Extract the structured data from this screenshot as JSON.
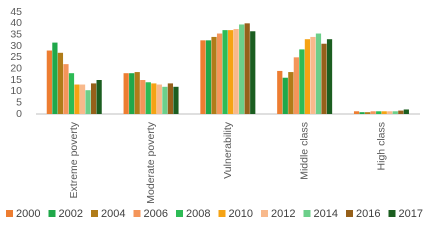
{
  "chart_data": {
    "type": "bar",
    "categories": [
      "Extreme poverty",
      "Moderate poverty",
      "Vulnerability",
      "Middle class",
      "High class"
    ],
    "series": [
      {
        "name": "2000",
        "color": "#ed7d31",
        "values": [
          28,
          18,
          32.5,
          19,
          1.2
        ]
      },
      {
        "name": "2002",
        "color": "#1fa84a",
        "values": [
          31.5,
          18,
          32.5,
          16,
          0.8
        ]
      },
      {
        "name": "2004",
        "color": "#b07c19",
        "values": [
          27,
          18.5,
          34,
          18.5,
          0.8
        ]
      },
      {
        "name": "2006",
        "color": "#f4955a",
        "values": [
          22,
          15,
          35.5,
          25,
          1.2
        ]
      },
      {
        "name": "2008",
        "color": "#2dbb55",
        "values": [
          18,
          14,
          37,
          28.5,
          1.2
        ]
      },
      {
        "name": "2010",
        "color": "#f5a314",
        "values": [
          13,
          13.5,
          37,
          33,
          1.2
        ]
      },
      {
        "name": "2012",
        "color": "#f8b98c",
        "values": [
          13,
          13,
          37.5,
          34,
          1.2
        ]
      },
      {
        "name": "2014",
        "color": "#6ccf8a",
        "values": [
          10.5,
          12,
          39.5,
          35.5,
          1.2
        ]
      },
      {
        "name": "2016",
        "color": "#96601a",
        "values": [
          13.5,
          13.5,
          40,
          31,
          1.5
        ]
      },
      {
        "name": "2017",
        "color": "#1b5e20",
        "values": [
          15,
          12,
          36.5,
          33,
          2
        ]
      }
    ],
    "ylim": [
      0,
      45
    ],
    "yticks": [
      0,
      5,
      10,
      15,
      20,
      25,
      30,
      35,
      40,
      45
    ],
    "grid": false
  }
}
